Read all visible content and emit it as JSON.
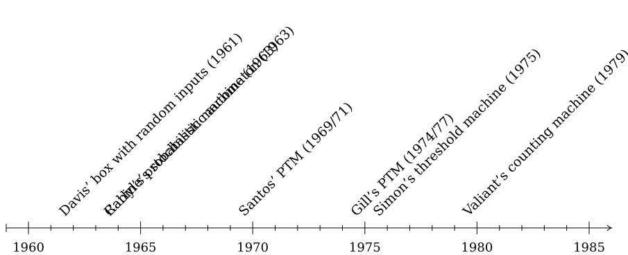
{
  "timeline": {
    "year_labels": [
      "1960",
      "1965",
      "1970",
      "1975",
      "1980",
      "1985"
    ],
    "events": [
      {
        "year": 1961,
        "label": "Davis’ box with random inputs (1961)"
      },
      {
        "year": 1963,
        "label": "Rabin’s probabilistic automaton (1963)"
      },
      {
        "year": 1963,
        "label": "Carlyle’s stochastic machine (1963)"
      },
      {
        "year": 1969,
        "label": "Santos’ PTM (1969/71)"
      },
      {
        "year": 1974,
        "label": "Gill’s PTM (1974/77)"
      },
      {
        "year": 1975,
        "label": "Simon’s threshold machine (1975)"
      },
      {
        "year": 1979,
        "label": "Valiant’s counting machine (1979)"
      }
    ]
  }
}
